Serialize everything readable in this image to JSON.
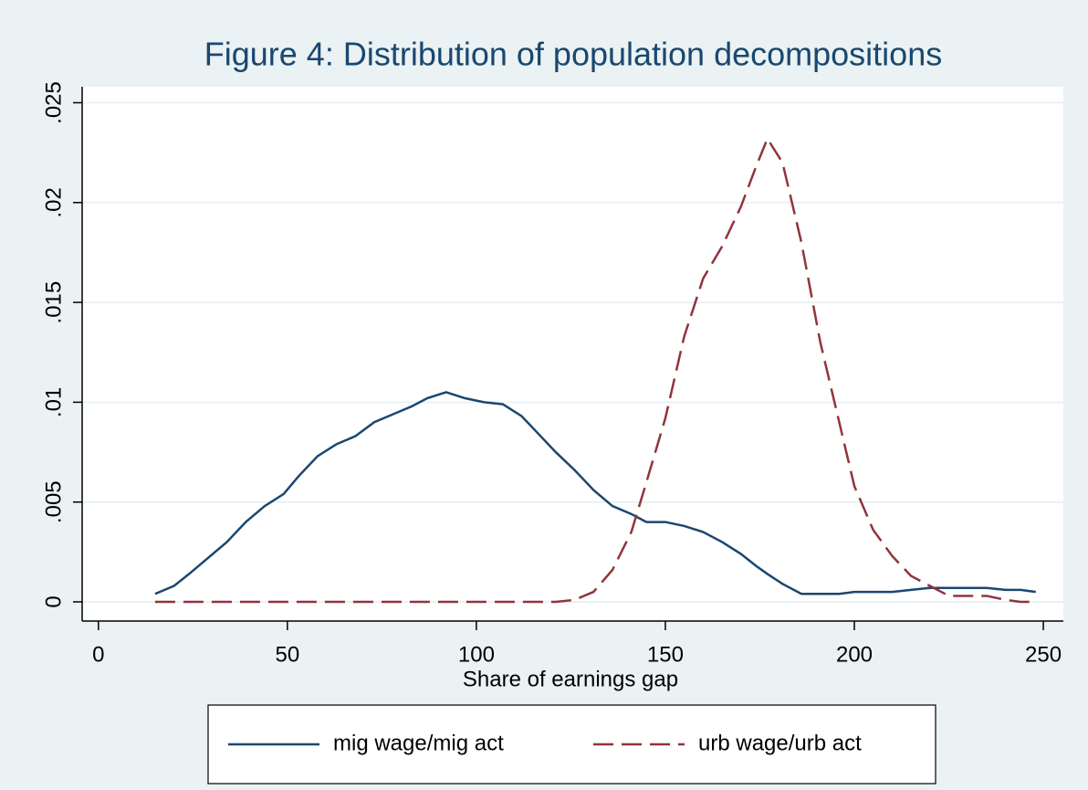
{
  "chart_data": {
    "type": "line",
    "title": "Figure 4: Distribution of population decompositions",
    "xlabel": "Share of earnings gap",
    "x": [
      15,
      20,
      24,
      29,
      34,
      39,
      44,
      49,
      53,
      58,
      63,
      68,
      73,
      78,
      83,
      87,
      92,
      97,
      102,
      107,
      112,
      116,
      121,
      126,
      131,
      136,
      141,
      145,
      150,
      155,
      160,
      165,
      170,
      174,
      177,
      181,
      186,
      191,
      196,
      200,
      205,
      210,
      215,
      220,
      225,
      230,
      235,
      240,
      244,
      248
    ],
    "series": [
      {
        "name": "mig wage/mig act",
        "color": "#1a476f",
        "dash": "solid",
        "values": [
          0.0004,
          0.0008,
          0.0014,
          0.0022,
          0.003,
          0.004,
          0.0048,
          0.0054,
          0.0063,
          0.0073,
          0.0079,
          0.0083,
          0.009,
          0.0094,
          0.0098,
          0.0102,
          0.0105,
          0.0102,
          0.01,
          0.0099,
          0.0093,
          0.0085,
          0.0075,
          0.0066,
          0.0056,
          0.0048,
          0.0044,
          0.004,
          0.004,
          0.0038,
          0.0035,
          0.003,
          0.0024,
          0.0018,
          0.0014,
          0.0009,
          0.0004,
          0.0004,
          0.0004,
          0.0005,
          0.0005,
          0.0005,
          0.0006,
          0.0007,
          0.0007,
          0.0007,
          0.0007,
          0.0006,
          0.0006,
          0.0005
        ]
      },
      {
        "name": "urb wage/urb act",
        "color": "#90353b",
        "dash": "dashed",
        "values": [
          0,
          0,
          0,
          0,
          0,
          0,
          0,
          0,
          0,
          0,
          0,
          0,
          0,
          0,
          0,
          0,
          0,
          0,
          0,
          0,
          0,
          0,
          0,
          0.0001,
          0.0005,
          0.0016,
          0.0035,
          0.006,
          0.0092,
          0.0133,
          0.0162,
          0.0178,
          0.0198,
          0.0218,
          0.0232,
          0.022,
          0.018,
          0.013,
          0.009,
          0.0058,
          0.0036,
          0.0023,
          0.0013,
          0.0008,
          0.0003,
          0.0003,
          0.0003,
          0.0001,
          0,
          0
        ]
      }
    ],
    "xlim": [
      -4.3,
      255.3
    ],
    "xticks": [
      0,
      50,
      100,
      150,
      200,
      250
    ],
    "ylim": [
      -0.00096,
      0.0258
    ],
    "yticks": [
      0,
      {
        "value": 0.005,
        "label": ".005"
      },
      {
        "value": 0.01,
        "label": ".01"
      },
      {
        "value": 0.015,
        "label": ".015"
      },
      {
        "value": 0.02,
        "label": ".02"
      },
      {
        "value": 0.025,
        "label": ".025"
      }
    ],
    "grid": true,
    "legend": "bottom"
  }
}
